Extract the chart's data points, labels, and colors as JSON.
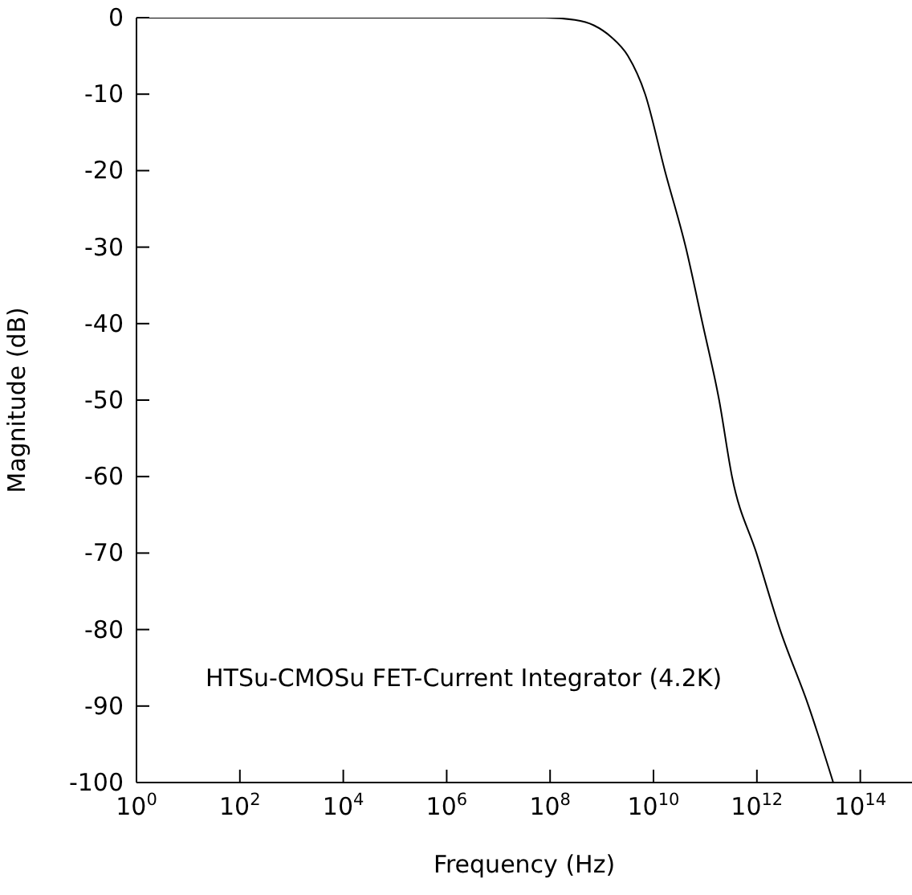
{
  "chart_data": {
    "type": "line",
    "xlabel": "Frequency (Hz)",
    "ylabel": "Magnitude (dB)",
    "annotations": [
      "HTSu-CMOSu FET-Current Integrator (4.2K)"
    ],
    "x": [
      1,
      1000,
      1000000,
      10000000,
      80000000,
      300000000,
      700000000,
      1500000000,
      3200000000,
      6900000000,
      16600000000,
      42000000000,
      89000000000,
      186000000000,
      330000000000,
      980000000000,
      2800000000000,
      10000000000000,
      30000000000000
    ],
    "series": [
      {
        "color": "#000000",
        "values": [
          0,
          0,
          0,
          0,
          0,
          -0.3,
          -1,
          -2.5,
          -5,
          -10,
          -20,
          -30,
          -40,
          -50,
          -60,
          -70,
          -80,
          -90,
          -100
        ]
      }
    ],
    "log": "x",
    "xlim": [
      1,
      1000000000000000
    ],
    "xticks": [
      {
        "value": 1,
        "label": "10$^{0}$"
      },
      {
        "value": 100,
        "label": "10$^{2}$"
      },
      {
        "value": 10000,
        "label": "10$^{4}$"
      },
      {
        "value": 1000000,
        "label": "10$^{6}$"
      },
      {
        "value": 100000000,
        "label": "10$^{8}$"
      },
      {
        "value": 10000000000,
        "label": "10$^{10}$"
      },
      {
        "value": 1000000000000,
        "label": "10$^{12}$"
      },
      {
        "value": 100000000000000,
        "label": "10$^{14}$"
      }
    ],
    "ylim": [
      -100,
      0
    ],
    "yticks": [
      -100,
      -90,
      -80,
      -70,
      -60,
      -50,
      -40,
      -30,
      -20,
      -10,
      0
    ],
    "grid": false,
    "legend": false,
    "marker": "none",
    "line_style": "solid"
  }
}
